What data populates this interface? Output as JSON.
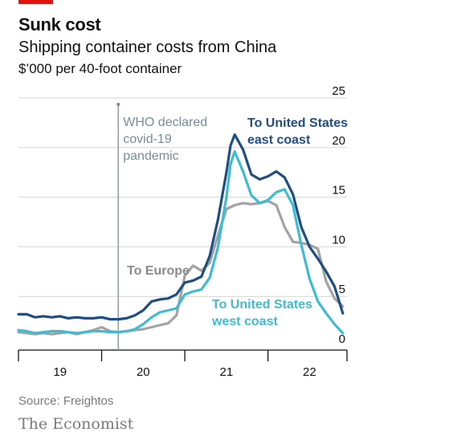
{
  "header": {
    "title": "Sunk cost",
    "subtitle": "Shipping container costs from China",
    "unit": "$’000 per 40-foot container"
  },
  "footer": {
    "source": "Source: Freightos",
    "brand": "The Economist"
  },
  "colors": {
    "brand_red": "#E3120B",
    "us_east": "#1F4E85",
    "us_west": "#3EBCD2",
    "europe": "#A3A3A3",
    "annotation": "#758D99"
  },
  "chart_data": {
    "type": "line",
    "title": "Shipping container costs from China",
    "ylabel": "$’000 per 40-foot container",
    "xlim": [
      2019.0,
      2022.95
    ],
    "ylim": [
      0,
      25
    ],
    "yticks": [
      0,
      5,
      10,
      15,
      20,
      25
    ],
    "xtick_labels": [
      "19",
      "20",
      "21",
      "22"
    ],
    "grid": "horizontal",
    "y_axis_side": "right",
    "annotation": {
      "text": [
        "WHO declared",
        "covid-19",
        "pandemic"
      ],
      "x": 2020.2
    },
    "series": [
      {
        "name": "To United States east coast",
        "label_lines": [
          "To United States",
          "east coast"
        ],
        "color": "#1F4E85",
        "x": [
          2019.0,
          2019.1,
          2019.2,
          2019.3,
          2019.4,
          2019.5,
          2019.6,
          2019.7,
          2019.8,
          2019.9,
          2020.0,
          2020.1,
          2020.2,
          2020.3,
          2020.4,
          2020.5,
          2020.6,
          2020.7,
          2020.8,
          2020.9,
          2021.0,
          2021.1,
          2021.2,
          2021.3,
          2021.4,
          2021.5,
          2021.55,
          2021.6,
          2021.7,
          2021.8,
          2021.9,
          2022.0,
          2022.1,
          2022.2,
          2022.3,
          2022.4,
          2022.5,
          2022.6,
          2022.7,
          2022.8,
          2022.9
        ],
        "y": [
          3.2,
          3.2,
          2.9,
          3.0,
          2.9,
          3.0,
          2.8,
          2.9,
          2.8,
          2.8,
          2.9,
          2.7,
          2.7,
          2.8,
          3.1,
          3.6,
          4.5,
          4.7,
          4.8,
          5.2,
          6.4,
          6.6,
          7.0,
          9.1,
          12.8,
          17.5,
          20.2,
          21.3,
          19.8,
          17.3,
          16.8,
          17.1,
          17.6,
          17.0,
          15.3,
          12.0,
          10.0,
          8.8,
          7.5,
          6.0,
          3.3
        ]
      },
      {
        "name": "To United States west coast",
        "label_lines": [
          "To United States",
          "west coast"
        ],
        "color": "#3EBCD2",
        "x": [
          2019.0,
          2019.1,
          2019.2,
          2019.3,
          2019.4,
          2019.5,
          2019.6,
          2019.7,
          2019.8,
          2019.9,
          2020.0,
          2020.1,
          2020.2,
          2020.3,
          2020.4,
          2020.5,
          2020.6,
          2020.7,
          2020.8,
          2020.9,
          2021.0,
          2021.1,
          2021.2,
          2021.3,
          2021.4,
          2021.5,
          2021.55,
          2021.6,
          2021.7,
          2021.8,
          2021.9,
          2022.0,
          2022.1,
          2022.2,
          2022.3,
          2022.4,
          2022.5,
          2022.6,
          2022.7,
          2022.8,
          2022.9
        ],
        "y": [
          1.6,
          1.5,
          1.3,
          1.4,
          1.5,
          1.5,
          1.4,
          1.3,
          1.4,
          1.5,
          1.5,
          1.4,
          1.4,
          1.5,
          1.7,
          2.2,
          2.9,
          3.4,
          3.6,
          3.8,
          5.2,
          5.5,
          5.7,
          6.9,
          10.0,
          15.0,
          18.3,
          19.6,
          17.6,
          15.2,
          14.4,
          14.7,
          15.5,
          15.8,
          14.2,
          10.2,
          6.8,
          4.5,
          3.3,
          2.2,
          1.3
        ]
      },
      {
        "name": "To Europe",
        "label_lines": [
          "To Europe"
        ],
        "color": "#A3A3A3",
        "x": [
          2019.0,
          2019.1,
          2019.2,
          2019.3,
          2019.4,
          2019.5,
          2019.6,
          2019.7,
          2019.8,
          2019.9,
          2020.0,
          2020.1,
          2020.2,
          2020.3,
          2020.4,
          2020.5,
          2020.6,
          2020.7,
          2020.8,
          2020.9,
          2021.0,
          2021.1,
          2021.2,
          2021.3,
          2021.4,
          2021.5,
          2021.55,
          2021.6,
          2021.7,
          2021.8,
          2021.9,
          2022.0,
          2022.1,
          2022.2,
          2022.3,
          2022.4,
          2022.5,
          2022.6,
          2022.7,
          2022.8,
          2022.9
        ],
        "y": [
          1.4,
          1.3,
          1.2,
          1.3,
          1.2,
          1.3,
          1.4,
          1.2,
          1.4,
          1.6,
          1.9,
          1.5,
          1.4,
          1.5,
          1.6,
          1.7,
          1.9,
          2.1,
          2.3,
          3.1,
          7.1,
          8.1,
          7.6,
          8.4,
          11.2,
          13.8,
          14.0,
          14.2,
          14.4,
          14.3,
          14.4,
          14.6,
          14.2,
          12.0,
          10.5,
          10.4,
          10.2,
          9.8,
          6.5,
          4.8,
          4.0
        ]
      }
    ]
  }
}
